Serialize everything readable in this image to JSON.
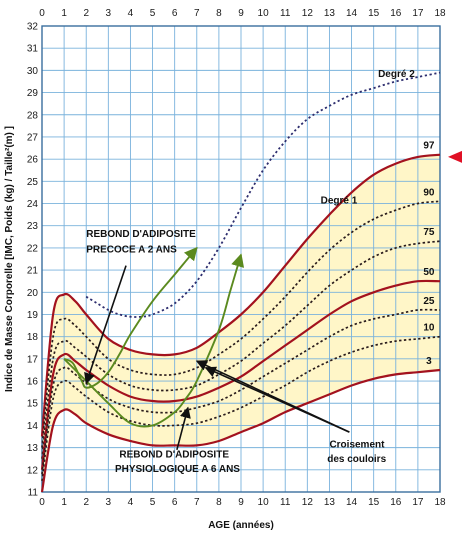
{
  "chart_data": {
    "type": "line",
    "title": "",
    "xlabel": "AGE (années)",
    "ylabel": "Indice de Masse Corporelle [IMC, Poids (kg) / Taille²(m) ]",
    "xlim": [
      0,
      18
    ],
    "ylim": [
      11,
      32
    ],
    "x_ticks": [
      0,
      1,
      2,
      3,
      4,
      5,
      6,
      7,
      8,
      9,
      10,
      11,
      12,
      13,
      14,
      15,
      16,
      17,
      18
    ],
    "y_ticks": [
      11,
      12,
      13,
      14,
      15,
      16,
      17,
      18,
      19,
      20,
      21,
      22,
      23,
      24,
      25,
      26,
      27,
      28,
      29,
      30,
      31,
      32
    ],
    "x_tick_labels": [
      "0",
      "1",
      "2",
      "3",
      "4",
      "5",
      "6",
      "7",
      "8",
      "9",
      "10",
      "11",
      "12",
      "13",
      "14",
      "15",
      "16",
      "17",
      "18"
    ],
    "y_tick_labels": [
      "11",
      "12",
      "13",
      "14",
      "15",
      "16",
      "17",
      "18",
      "19",
      "20",
      "21",
      "22",
      "23",
      "24",
      "25",
      "26",
      "27",
      "28",
      "29",
      "30",
      "31",
      "32"
    ],
    "right_tick_labels": [
      "",
      "",
      "",
      "",
      "",
      "",
      "",
      "",
      "",
      "",
      "",
      "",
      "",
      "",
      "",
      "",
      "",
      "",
      "",
      "",
      "",
      ""
    ],
    "grid": true,
    "series": [
      {
        "name": "97",
        "style": "solid",
        "x": [
          0,
          0.5,
          1,
          1.5,
          2,
          3,
          4,
          5,
          6,
          7,
          8,
          9,
          10,
          11,
          12,
          13,
          14,
          15,
          16,
          17,
          18
        ],
        "y": [
          13.5,
          19.0,
          19.9,
          19.6,
          19.0,
          17.9,
          17.4,
          17.2,
          17.2,
          17.5,
          18.2,
          19.0,
          20.0,
          21.2,
          22.4,
          23.5,
          24.5,
          25.3,
          25.8,
          26.1,
          26.2
        ]
      },
      {
        "name": "90",
        "style": "dotted",
        "x": [
          0,
          0.5,
          1,
          1.5,
          2,
          3,
          4,
          5,
          6,
          7,
          8,
          9,
          10,
          11,
          12,
          13,
          14,
          15,
          16,
          17,
          18
        ],
        "y": [
          13.0,
          18.0,
          18.8,
          18.5,
          18.0,
          17.0,
          16.5,
          16.3,
          16.3,
          16.6,
          17.2,
          17.9,
          18.8,
          19.8,
          20.9,
          21.9,
          22.7,
          23.3,
          23.7,
          24.0,
          24.1
        ]
      },
      {
        "name": "75",
        "style": "dotted",
        "x": [
          0,
          0.5,
          1,
          1.5,
          2,
          3,
          4,
          5,
          6,
          7,
          8,
          9,
          10,
          11,
          12,
          13,
          14,
          15,
          16,
          17,
          18
        ],
        "y": [
          12.5,
          17.0,
          17.8,
          17.5,
          17.1,
          16.3,
          15.8,
          15.6,
          15.6,
          15.8,
          16.3,
          16.9,
          17.7,
          18.5,
          19.4,
          20.3,
          21.0,
          21.6,
          22.0,
          22.2,
          22.3
        ]
      },
      {
        "name": "50",
        "style": "solid",
        "x": [
          0,
          0.5,
          1,
          1.5,
          2,
          3,
          4,
          5,
          6,
          7,
          8,
          9,
          10,
          11,
          12,
          13,
          14,
          15,
          16,
          17,
          18
        ],
        "y": [
          12.0,
          16.3,
          17.2,
          16.9,
          16.5,
          15.8,
          15.3,
          15.1,
          15.1,
          15.3,
          15.7,
          16.2,
          16.9,
          17.6,
          18.3,
          19.0,
          19.6,
          20.0,
          20.3,
          20.5,
          20.5
        ]
      },
      {
        "name": "25",
        "style": "dotted",
        "x": [
          0,
          0.5,
          1,
          1.5,
          2,
          3,
          4,
          5,
          6,
          7,
          8,
          9,
          10,
          11,
          12,
          13,
          14,
          15,
          16,
          17,
          18
        ],
        "y": [
          11.8,
          15.8,
          16.6,
          16.3,
          15.9,
          15.2,
          14.8,
          14.6,
          14.6,
          14.8,
          15.1,
          15.6,
          16.2,
          16.8,
          17.4,
          18.0,
          18.5,
          18.8,
          19.0,
          19.2,
          19.2
        ]
      },
      {
        "name": "10",
        "style": "dotted",
        "x": [
          0,
          0.5,
          1,
          1.5,
          2,
          3,
          4,
          5,
          6,
          7,
          8,
          9,
          10,
          11,
          12,
          13,
          14,
          15,
          16,
          17,
          18
        ],
        "y": [
          11.5,
          15.2,
          16.0,
          15.7,
          15.3,
          14.6,
          14.2,
          14.0,
          14.0,
          14.1,
          14.4,
          14.8,
          15.3,
          15.8,
          16.4,
          16.9,
          17.3,
          17.6,
          17.8,
          17.9,
          18.0
        ]
      },
      {
        "name": "3",
        "style": "solid",
        "x": [
          0,
          0.5,
          1,
          1.5,
          2,
          3,
          4,
          5,
          6,
          7,
          8,
          9,
          10,
          11,
          12,
          13,
          14,
          15,
          16,
          17,
          18
        ],
        "y": [
          11.0,
          14.0,
          14.7,
          14.5,
          14.1,
          13.6,
          13.3,
          13.1,
          13.1,
          13.1,
          13.3,
          13.7,
          14.1,
          14.6,
          15.0,
          15.4,
          15.8,
          16.1,
          16.3,
          16.4,
          16.5
        ]
      },
      {
        "name": "Degré 2",
        "style": "dotted",
        "x": [
          2,
          2.5,
          3,
          3.5,
          4,
          4.5,
          5,
          6,
          7,
          8,
          9,
          10,
          11,
          12,
          13,
          14,
          15,
          16,
          17,
          18
        ],
        "y": [
          19.8,
          19.5,
          19.2,
          19.0,
          18.9,
          18.9,
          19.0,
          19.5,
          20.5,
          22.0,
          23.8,
          25.5,
          26.8,
          27.8,
          28.4,
          28.9,
          29.2,
          29.5,
          29.7,
          29.9
        ]
      },
      {
        "name": "",
        "style": "green",
        "x": [
          1,
          1.4,
          1.8,
          2,
          2.5,
          3,
          3.5,
          4,
          5,
          6,
          6.5,
          7
        ],
        "y": [
          17.0,
          16.8,
          16.0,
          15.7,
          15.9,
          16.4,
          17.2,
          18.1,
          19.6,
          20.8,
          21.4,
          22.0
        ]
      },
      {
        "name": "",
        "style": "green",
        "x": [
          1,
          1.5,
          2,
          3,
          4,
          5,
          6,
          6.5,
          7,
          8,
          8.5,
          9
        ],
        "y": [
          17.0,
          16.5,
          16.0,
          15.0,
          14.1,
          14.0,
          14.6,
          15.2,
          16.0,
          18.3,
          20.0,
          21.7
        ]
      }
    ],
    "annotations": [
      {
        "id": "degre2",
        "text": "Degré 2",
        "x": 15.2,
        "y": 29.7
      },
      {
        "id": "degre1",
        "text": "Degré 1",
        "x": 12.6,
        "y": 24.0
      },
      {
        "id": "precoce-l1",
        "text": "REBOND D'ADIPOSITE",
        "x": 2.0,
        "y": 22.5
      },
      {
        "id": "precoce-l2",
        "text": "PRECOCE A 2 ANS",
        "x": 2.0,
        "y": 21.8
      },
      {
        "id": "couloirs-l1",
        "text": "Croisement",
        "x": 13.0,
        "y": 13.0
      },
      {
        "id": "couloirs-l2",
        "text": "des couloirs",
        "x": 12.9,
        "y": 12.35
      },
      {
        "id": "physio-l1",
        "text": "REBOND D'ADIPOSITE",
        "x": 3.5,
        "y": 12.55
      },
      {
        "id": "physio-l2",
        "text": "PHYSIOLOGIQUE A 6 ANS",
        "x": 3.3,
        "y": 11.9
      }
    ],
    "arrows": [
      {
        "from": [
          3.8,
          21.2
        ],
        "to": [
          2.0,
          15.9
        ]
      },
      {
        "from": [
          6.1,
          12.9
        ],
        "to": [
          6.6,
          14.8
        ]
      },
      {
        "from": [
          13.9,
          13.7
        ],
        "to": [
          7.0,
          16.9
        ]
      },
      {
        "from": [
          13.9,
          13.7
        ],
        "to": [
          7.4,
          16.6
        ]
      }
    ],
    "colors": {
      "fill": "#fff6c8",
      "grid": "#79b2dc",
      "curve": "#a3121e",
      "degre2": "#2d2d6e",
      "green": "#5b8a1f",
      "marker": "#e01025"
    }
  }
}
